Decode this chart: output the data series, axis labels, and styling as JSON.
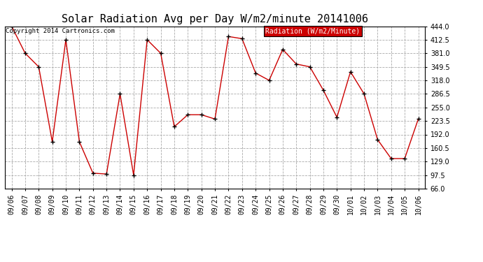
{
  "title": "Solar Radiation Avg per Day W/m2/minute 20141006",
  "copyright": "Copyright 2014 Cartronics.com",
  "legend_label": "Radiation (W/m2/Minute)",
  "legend_bg": "#cc0000",
  "legend_fg": "#ffffff",
  "line_color": "#cc0000",
  "marker_color": "#000000",
  "bg_color": "#ffffff",
  "plot_bg": "#ffffff",
  "grid_color": "#aaaaaa",
  "dates": [
    "09/06",
    "09/07",
    "09/08",
    "09/09",
    "09/10",
    "09/11",
    "09/12",
    "09/13",
    "09/14",
    "09/15",
    "09/16",
    "09/17",
    "09/18",
    "09/19",
    "09/20",
    "09/21",
    "09/22",
    "09/23",
    "09/24",
    "09/25",
    "09/26",
    "09/27",
    "09/28",
    "09/29",
    "09/30",
    "10/01",
    "10/02",
    "10/03",
    "10/04",
    "10/05",
    "10/06"
  ],
  "values": [
    444.0,
    381.0,
    349.5,
    175.0,
    412.5,
    175.0,
    102.0,
    100.0,
    286.5,
    97.5,
    412.5,
    381.0,
    210.0,
    238.0,
    238.0,
    228.0,
    420.0,
    415.0,
    335.0,
    318.0,
    390.0,
    356.0,
    349.5,
    295.0,
    232.0,
    338.0,
    286.5,
    180.0,
    136.0,
    136.0,
    228.0
  ],
  "ylim": [
    66.0,
    444.0
  ],
  "yticks": [
    66.0,
    97.5,
    129.0,
    160.5,
    192.0,
    223.5,
    255.0,
    286.5,
    318.0,
    349.5,
    381.0,
    412.5,
    444.0
  ],
  "title_fontsize": 11,
  "tick_fontsize": 7,
  "copyright_fontsize": 6.5
}
